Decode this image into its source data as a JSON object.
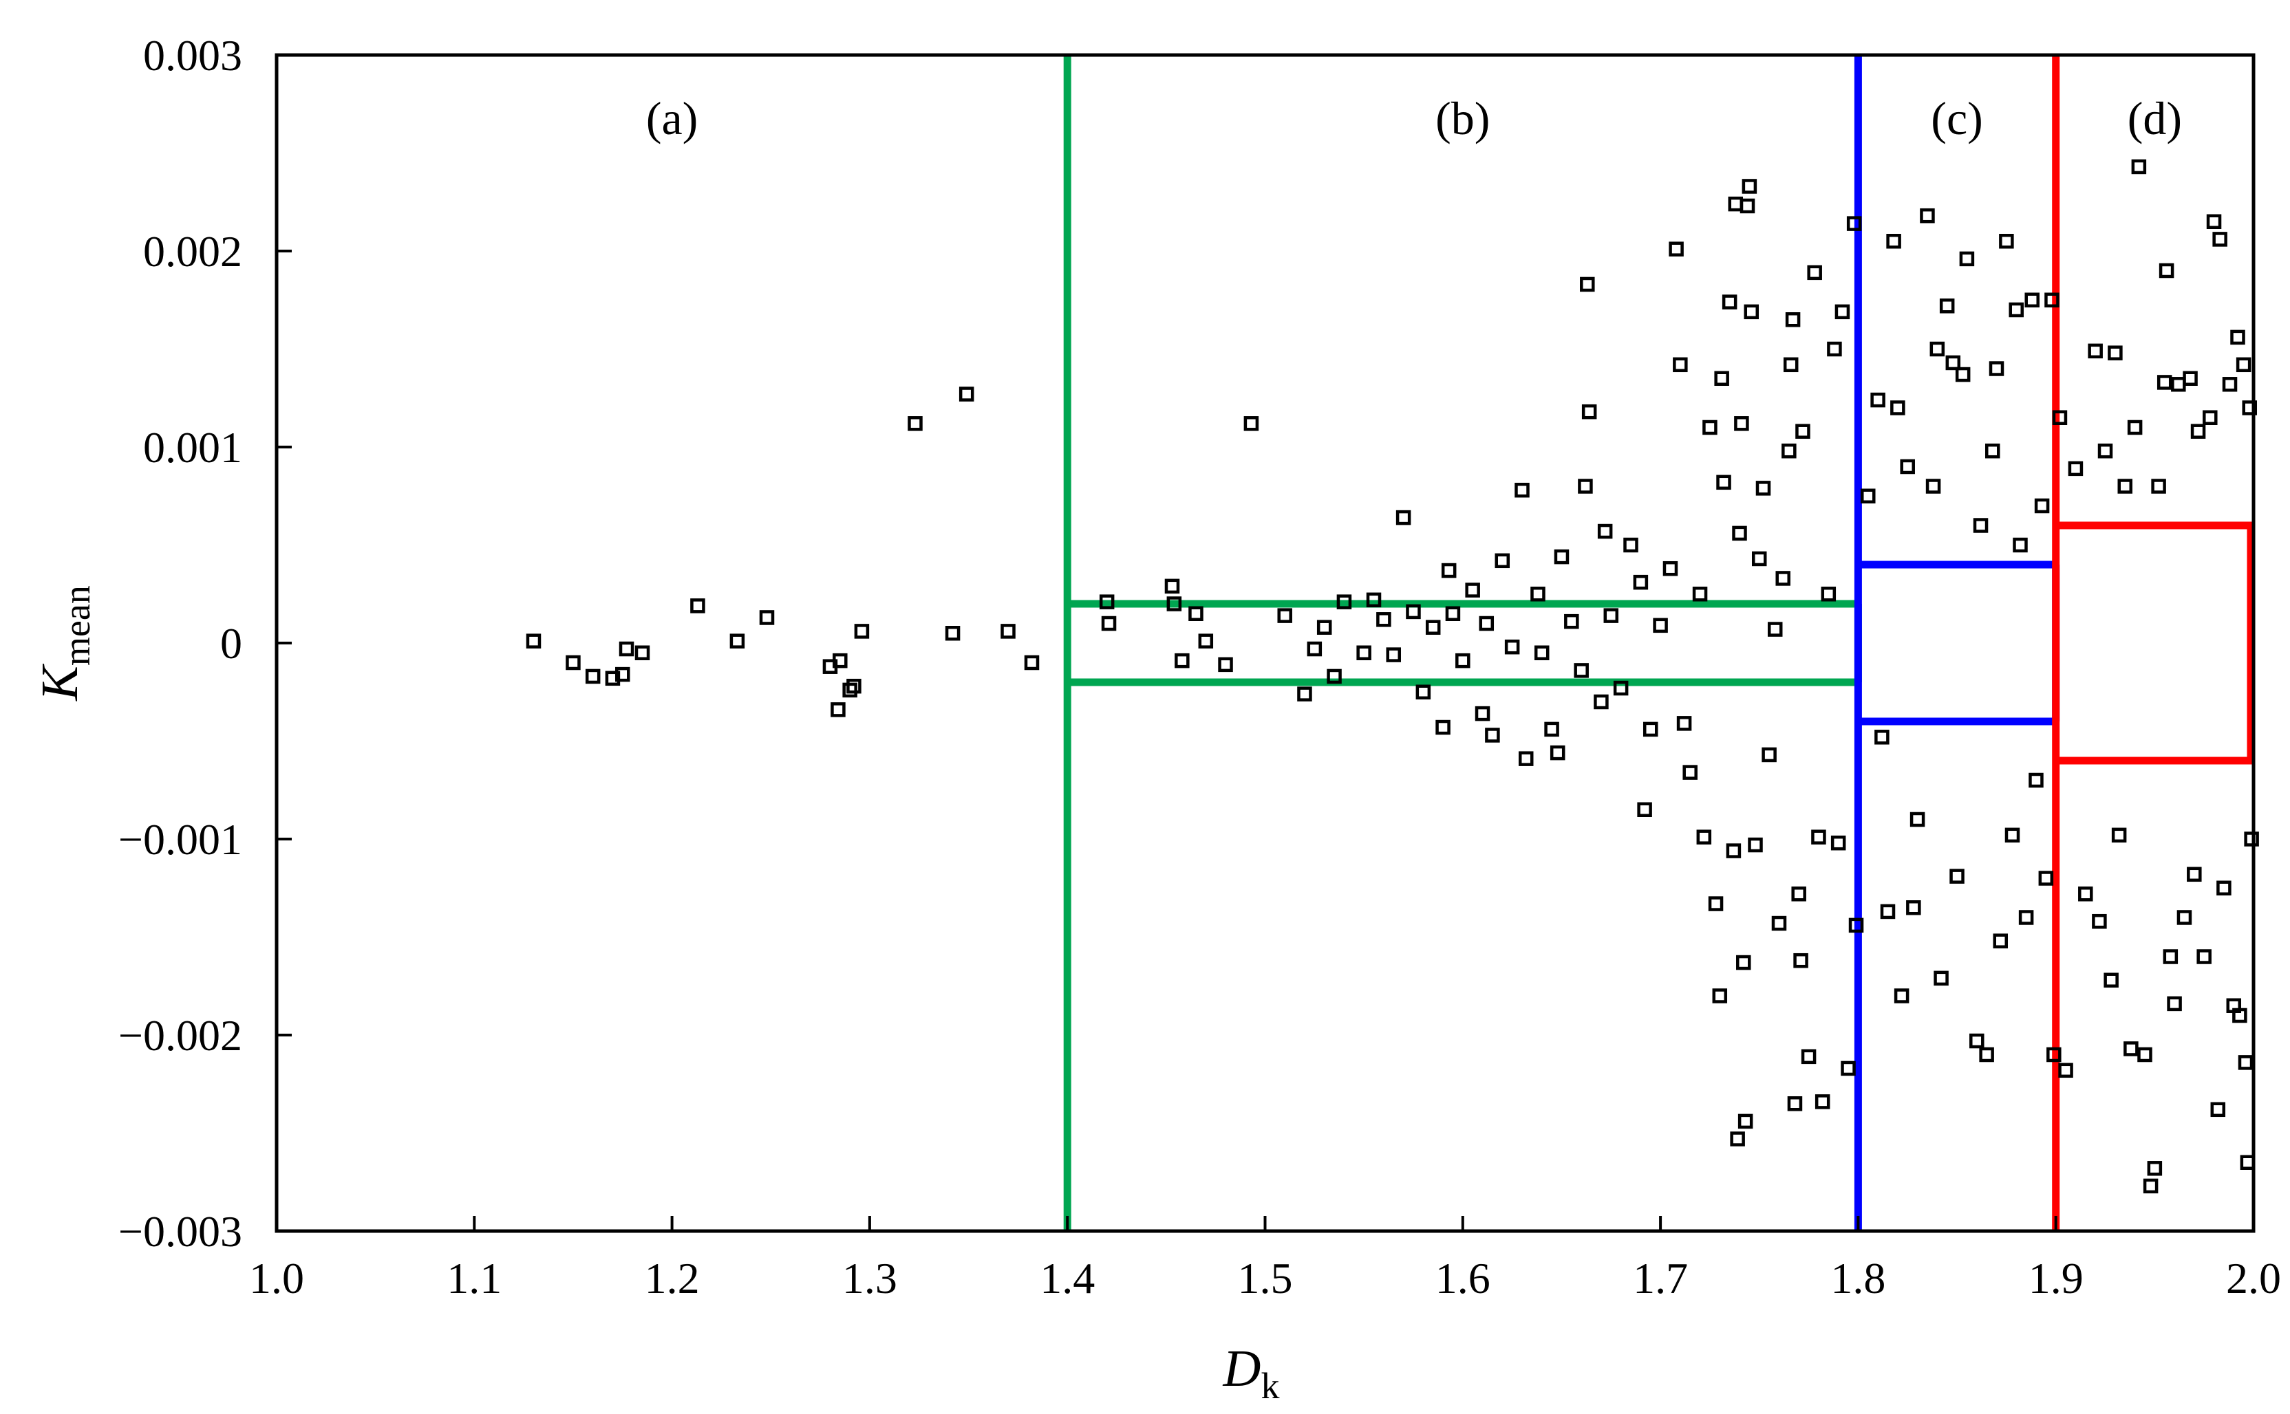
{
  "chart_data": {
    "type": "scatter",
    "title": "",
    "xlabel": "D",
    "xlabel_subscript": "k",
    "ylabel": "K",
    "ylabel_subscript": "mean",
    "xlim": [
      1.0,
      2.0
    ],
    "ylim": [
      -0.003,
      0.003
    ],
    "x_ticks": [
      1.0,
      1.1,
      1.2,
      1.3,
      1.4,
      1.5,
      1.6,
      1.7,
      1.8,
      1.9,
      2.0
    ],
    "x_tick_labels": [
      "1.0",
      "1.1",
      "1.2",
      "1.3",
      "1.4",
      "1.5",
      "1.6",
      "1.7",
      "1.8",
      "1.9",
      "2.0"
    ],
    "y_ticks": [
      0.003,
      0.002,
      0.001,
      0,
      -0.001,
      -0.002,
      -0.003
    ],
    "y_tick_labels": [
      "0.003",
      "0.002",
      "0.001",
      "0",
      "−0.001",
      "−0.002",
      "−0.003"
    ],
    "grid": false,
    "marker": "open-square",
    "point_color": "#000000",
    "regions": [
      {
        "label": "(a)",
        "x_range": [
          1.0,
          1.4
        ]
      },
      {
        "label": "(b)",
        "x_range": [
          1.4,
          1.8
        ],
        "color": "#00a651",
        "band": [
          -0.0002,
          0.0002
        ]
      },
      {
        "label": "(c)",
        "x_range": [
          1.8,
          1.9
        ],
        "color": "#0000ff",
        "band": [
          -0.0004,
          0.0004
        ]
      },
      {
        "label": "(d)",
        "x_range": [
          1.9,
          2.0
        ],
        "color": "#ff0000",
        "band": [
          -0.0006,
          0.0006
        ]
      }
    ],
    "series": [
      {
        "points": [
          [
            1.13,
            1e-05
          ],
          [
            1.15,
            -0.0001
          ],
          [
            1.16,
            -0.00017
          ],
          [
            1.17,
            -0.00018
          ],
          [
            1.175,
            -0.00016
          ],
          [
            1.177,
            -3e-05
          ],
          [
            1.185,
            -5e-05
          ],
          [
            1.213,
            0.00019
          ],
          [
            1.233,
            1e-05
          ],
          [
            1.248,
            0.00013
          ],
          [
            1.28,
            -0.00012
          ],
          [
            1.284,
            -0.00034
          ],
          [
            1.285,
            -9e-05
          ],
          [
            1.29,
            -0.00024
          ],
          [
            1.292,
            -0.00022
          ],
          [
            1.296,
            6e-05
          ],
          [
            1.323,
            0.00112
          ],
          [
            1.342,
            5e-05
          ],
          [
            1.349,
            0.00127
          ],
          [
            1.37,
            6e-05
          ],
          [
            1.382,
            -0.0001
          ],
          [
            1.42,
            0.00021
          ],
          [
            1.421,
            0.0001
          ],
          [
            1.453,
            0.00029
          ],
          [
            1.454,
            0.0002
          ],
          [
            1.458,
            -9e-05
          ],
          [
            1.465,
            0.00015
          ],
          [
            1.47,
            1e-05
          ],
          [
            1.48,
            -0.00011
          ],
          [
            1.493,
            0.00112
          ],
          [
            1.51,
            0.00014
          ],
          [
            1.52,
            -0.00026
          ],
          [
            1.525,
            -3e-05
          ],
          [
            1.53,
            8e-05
          ],
          [
            1.535,
            -0.00017
          ],
          [
            1.54,
            0.00021
          ],
          [
            1.55,
            -5e-05
          ],
          [
            1.555,
            0.00022
          ],
          [
            1.56,
            0.00012
          ],
          [
            1.565,
            -6e-05
          ],
          [
            1.57,
            0.00064
          ],
          [
            1.575,
            0.00016
          ],
          [
            1.58,
            -0.00025
          ],
          [
            1.585,
            8e-05
          ],
          [
            1.59,
            -0.00043
          ],
          [
            1.593,
            0.00037
          ],
          [
            1.595,
            0.00015
          ],
          [
            1.6,
            -9e-05
          ],
          [
            1.605,
            0.00027
          ],
          [
            1.61,
            -0.00036
          ],
          [
            1.612,
            0.0001
          ],
          [
            1.615,
            -0.00047
          ],
          [
            1.62,
            0.00042
          ],
          [
            1.625,
            -2e-05
          ],
          [
            1.63,
            0.00078
          ],
          [
            1.632,
            -0.00059
          ],
          [
            1.638,
            0.00025
          ],
          [
            1.64,
            -5e-05
          ],
          [
            1.645,
            -0.00044
          ],
          [
            1.648,
            -0.00056
          ],
          [
            1.65,
            0.00044
          ],
          [
            1.655,
            0.00011
          ],
          [
            1.66,
            -0.00014
          ],
          [
            1.662,
            0.0008
          ],
          [
            1.663,
            0.00183
          ],
          [
            1.664,
            0.00118
          ],
          [
            1.67,
            -0.0003
          ],
          [
            1.672,
            0.00057
          ],
          [
            1.675,
            0.00014
          ],
          [
            1.68,
            -0.00023
          ],
          [
            1.685,
            0.0005
          ],
          [
            1.69,
            0.00031
          ],
          [
            1.692,
            -0.00085
          ],
          [
            1.695,
            -0.00044
          ],
          [
            1.7,
            9e-05
          ],
          [
            1.705,
            0.00038
          ],
          [
            1.708,
            0.00201
          ],
          [
            1.71,
            0.00142
          ],
          [
            1.712,
            -0.00041
          ],
          [
            1.715,
            -0.00066
          ],
          [
            1.72,
            0.00025
          ],
          [
            1.722,
            -0.00099
          ],
          [
            1.725,
            0.0011
          ],
          [
            1.728,
            -0.00133
          ],
          [
            1.73,
            -0.0018
          ],
          [
            1.731,
            0.00135
          ],
          [
            1.732,
            0.00082
          ],
          [
            1.735,
            0.00174
          ],
          [
            1.737,
            -0.00106
          ],
          [
            1.738,
            0.00224
          ],
          [
            1.739,
            -0.00253
          ],
          [
            1.74,
            0.00056
          ],
          [
            1.741,
            0.00112
          ],
          [
            1.742,
            -0.00163
          ],
          [
            1.743,
            -0.00244
          ],
          [
            1.744,
            0.00223
          ],
          [
            1.745,
            0.00233
          ],
          [
            1.746,
            0.00169
          ],
          [
            1.748,
            -0.00103
          ],
          [
            1.75,
            0.00043
          ],
          [
            1.752,
            0.00079
          ],
          [
            1.755,
            -0.00057
          ],
          [
            1.758,
            7e-05
          ],
          [
            1.76,
            -0.00143
          ],
          [
            1.762,
            0.00033
          ],
          [
            1.765,
            0.00098
          ],
          [
            1.766,
            0.00142
          ],
          [
            1.767,
            0.00165
          ],
          [
            1.768,
            -0.00235
          ],
          [
            1.77,
            -0.00128
          ],
          [
            1.771,
            -0.00162
          ],
          [
            1.772,
            0.00108
          ],
          [
            1.775,
            -0.00211
          ],
          [
            1.778,
            0.00189
          ],
          [
            1.78,
            -0.00099
          ],
          [
            1.782,
            -0.00234
          ],
          [
            1.785,
            0.00025
          ],
          [
            1.788,
            0.0015
          ],
          [
            1.79,
            -0.00102
          ],
          [
            1.792,
            0.00169
          ],
          [
            1.795,
            -0.00217
          ],
          [
            1.798,
            0.00214
          ],
          [
            1.799,
            -0.00144
          ],
          [
            1.805,
            0.00075
          ],
          [
            1.81,
            0.00124
          ],
          [
            1.812,
            -0.00048
          ],
          [
            1.815,
            -0.00137
          ],
          [
            1.818,
            0.00205
          ],
          [
            1.82,
            0.0012
          ],
          [
            1.822,
            -0.0018
          ],
          [
            1.825,
            0.0009
          ],
          [
            1.828,
            -0.00135
          ],
          [
            1.83,
            -0.0009
          ],
          [
            1.835,
            0.00218
          ],
          [
            1.838,
            0.0008
          ],
          [
            1.84,
            0.0015
          ],
          [
            1.842,
            -0.00171
          ],
          [
            1.845,
            0.00172
          ],
          [
            1.848,
            0.00143
          ],
          [
            1.85,
            -0.00119
          ],
          [
            1.853,
            0.00137
          ],
          [
            1.855,
            0.00196
          ],
          [
            1.86,
            -0.00203
          ],
          [
            1.862,
            0.0006
          ],
          [
            1.865,
            -0.0021
          ],
          [
            1.868,
            0.00098
          ],
          [
            1.87,
            0.0014
          ],
          [
            1.872,
            -0.00152
          ],
          [
            1.875,
            0.00205
          ],
          [
            1.878,
            -0.00098
          ],
          [
            1.88,
            0.0017
          ],
          [
            1.882,
            0.0005
          ],
          [
            1.885,
            -0.0014
          ],
          [
            1.888,
            0.00175
          ],
          [
            1.89,
            -0.0007
          ],
          [
            1.893,
            0.0007
          ],
          [
            1.895,
            -0.0012
          ],
          [
            1.898,
            0.00175
          ],
          [
            1.899,
            -0.0021
          ],
          [
            1.902,
            0.00115
          ],
          [
            1.905,
            -0.00218
          ],
          [
            1.91,
            0.00089
          ],
          [
            1.915,
            -0.00128
          ],
          [
            1.92,
            0.00149
          ],
          [
            1.922,
            -0.00142
          ],
          [
            1.925,
            0.00098
          ],
          [
            1.928,
            -0.00172
          ],
          [
            1.93,
            0.00148
          ],
          [
            1.932,
            -0.00098
          ],
          [
            1.935,
            0.0008
          ],
          [
            1.938,
            -0.00207
          ],
          [
            1.94,
            0.0011
          ],
          [
            1.942,
            0.00243
          ],
          [
            1.945,
            -0.0021
          ],
          [
            1.948,
            -0.00277
          ],
          [
            1.95,
            -0.00268
          ],
          [
            1.952,
            0.0008
          ],
          [
            1.955,
            0.00133
          ],
          [
            1.956,
            0.0019
          ],
          [
            1.958,
            -0.0016
          ],
          [
            1.96,
            -0.00184
          ],
          [
            1.962,
            0.00132
          ],
          [
            1.965,
            -0.0014
          ],
          [
            1.968,
            0.00135
          ],
          [
            1.97,
            -0.00118
          ],
          [
            1.972,
            0.00108
          ],
          [
            1.975,
            -0.0016
          ],
          [
            1.978,
            0.00115
          ],
          [
            1.98,
            0.00215
          ],
          [
            1.982,
            -0.00238
          ],
          [
            1.983,
            0.00206
          ],
          [
            1.985,
            -0.00125
          ],
          [
            1.988,
            0.00132
          ],
          [
            1.99,
            -0.00185
          ],
          [
            1.992,
            0.00156
          ],
          [
            1.993,
            -0.0019
          ],
          [
            1.995,
            0.00142
          ],
          [
            1.996,
            -0.00214
          ],
          [
            1.997,
            -0.00265
          ],
          [
            1.998,
            0.0012
          ],
          [
            1.999,
            -0.001
          ]
        ]
      }
    ]
  }
}
